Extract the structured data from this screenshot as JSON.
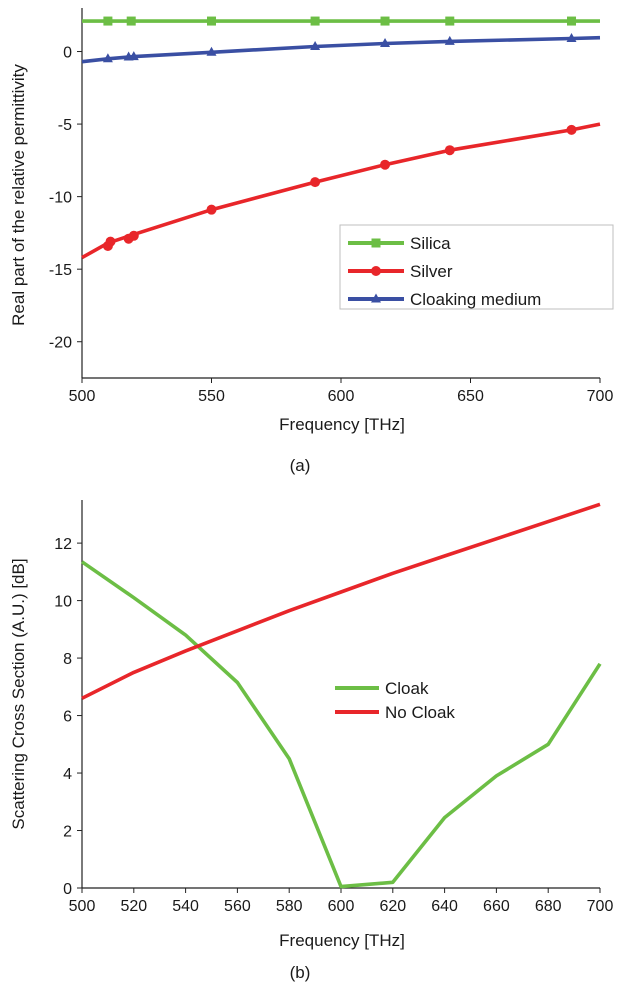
{
  "chart_data": [
    {
      "type": "line",
      "caption": "(a)",
      "xlabel": "Frequency [THz]",
      "ylabel": "Real part of the relative permittivity",
      "xlim": [
        500,
        700
      ],
      "ylim": [
        -22.5,
        3.0
      ],
      "xticks": [
        500,
        550,
        600,
        650,
        700
      ],
      "yticks": [
        0,
        -5,
        -10,
        -15,
        -20
      ],
      "grid": false,
      "legend_position": "lower-right",
      "series": [
        {
          "name": "Silica",
          "color": "#6cbe45",
          "marker": "square",
          "x": [
            500,
            510,
            520,
            550,
            590,
            617,
            642,
            689,
            700
          ],
          "y": [
            2.1,
            2.1,
            2.1,
            2.1,
            2.1,
            2.1,
            2.1,
            2.1,
            2.1
          ],
          "markers_x": [
            510,
            519,
            550,
            590,
            617,
            642,
            689
          ]
        },
        {
          "name": "Silver",
          "color": "#e8262a",
          "marker": "circle",
          "x": [
            500,
            510,
            520,
            550,
            590,
            617,
            642,
            689,
            700
          ],
          "y": [
            -14.2,
            -13.2,
            -12.6,
            -10.9,
            -9.0,
            -7.8,
            -6.8,
            -5.4,
            -5.0
          ],
          "markers_x": [
            510,
            511,
            518,
            520,
            550,
            590,
            617,
            642,
            689
          ],
          "markers_y": [
            -13.4,
            -13.1,
            -12.9,
            -12.7,
            -10.9,
            -9.0,
            -7.8,
            -6.8,
            -5.4
          ]
        },
        {
          "name": "Cloaking medium",
          "color": "#3a4fa3",
          "marker": "triangle",
          "x": [
            500,
            510,
            520,
            550,
            590,
            617,
            642,
            689,
            700
          ],
          "y": [
            -0.7,
            -0.5,
            -0.35,
            -0.05,
            0.35,
            0.55,
            0.7,
            0.9,
            0.95
          ],
          "markers_x": [
            510,
            518,
            520,
            550,
            590,
            617,
            642,
            689
          ]
        }
      ]
    },
    {
      "type": "line",
      "caption": "(b)",
      "xlabel": "Frequency [THz]",
      "ylabel": "Scattering Cross Section (A.U.) [dB]",
      "xlim": [
        500,
        700
      ],
      "ylim": [
        0,
        13.5
      ],
      "xticks": [
        500,
        520,
        540,
        560,
        580,
        600,
        620,
        640,
        660,
        680,
        700
      ],
      "yticks": [
        0,
        2,
        4,
        6,
        8,
        10,
        12
      ],
      "grid": false,
      "legend_position": "center",
      "series": [
        {
          "name": "Cloak",
          "color": "#6cbe45",
          "x": [
            500,
            520,
            540,
            560,
            580,
            600,
            620,
            640,
            660,
            680,
            700
          ],
          "y": [
            11.35,
            10.1,
            8.8,
            7.15,
            4.5,
            0.05,
            0.2,
            2.45,
            3.9,
            5.0,
            7.8
          ]
        },
        {
          "name": "No Cloak",
          "color": "#e8262a",
          "x": [
            500,
            520,
            540,
            560,
            580,
            600,
            620,
            640,
            660,
            680,
            700
          ],
          "y": [
            6.6,
            7.5,
            8.25,
            8.95,
            9.65,
            10.3,
            10.95,
            11.55,
            12.15,
            12.75,
            13.35
          ]
        }
      ]
    }
  ]
}
